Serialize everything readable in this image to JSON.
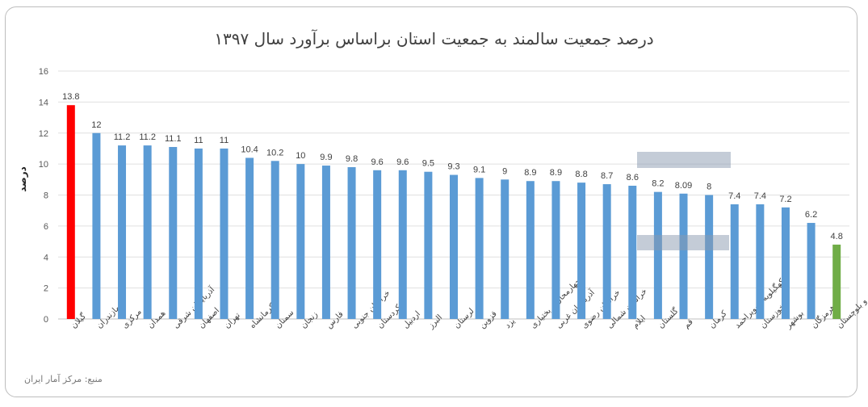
{
  "chart_data": {
    "type": "bar",
    "title": "درصد جمعیت سالمند به جمعیت استان براساس برآورد سال ۱۳۹۷",
    "xlabel": "",
    "ylabel": "درصد",
    "ylim": [
      0,
      16
    ],
    "yticks": [
      0,
      2,
      4,
      6,
      8,
      10,
      12,
      14,
      16
    ],
    "grid": true,
    "categories": [
      "گیلان",
      "مازندران",
      "مرکزی",
      "همدان",
      "آذربایجان شرقی",
      "اصفهان",
      "تهران",
      "کرمانشاه",
      "سمنان",
      "زنجان",
      "فارس",
      "خراسان جنوبی",
      "کردستان",
      "اردبیل",
      "البرز",
      "لرستان",
      "قزوین",
      "یزد",
      "چهارمحال و بختیاری",
      "آذربایجان غربی",
      "خراسان رضوی",
      "خراسان شمالی",
      "ایلام",
      "گلستان",
      "قم",
      "کرمان",
      "کهگیلویه و بویراحمد",
      "خوزستان",
      "بوشهر",
      "هرمزگان",
      "سیستان و بلوچستان"
    ],
    "values": [
      13.8,
      12,
      11.2,
      11.2,
      11.1,
      11,
      11,
      10.4,
      10.2,
      10,
      9.9,
      9.8,
      9.6,
      9.6,
      9.5,
      9.3,
      9.1,
      9,
      8.9,
      8.9,
      8.8,
      8.7,
      8.6,
      8.2,
      8.09,
      8,
      7.4,
      7.4,
      7.2,
      6.2,
      4.8
    ],
    "colors": {
      "default": "#5b9bd5",
      "max": "#ff0000",
      "min": "#70ad47"
    },
    "source": "منبع: مرکز آمار ایران"
  }
}
